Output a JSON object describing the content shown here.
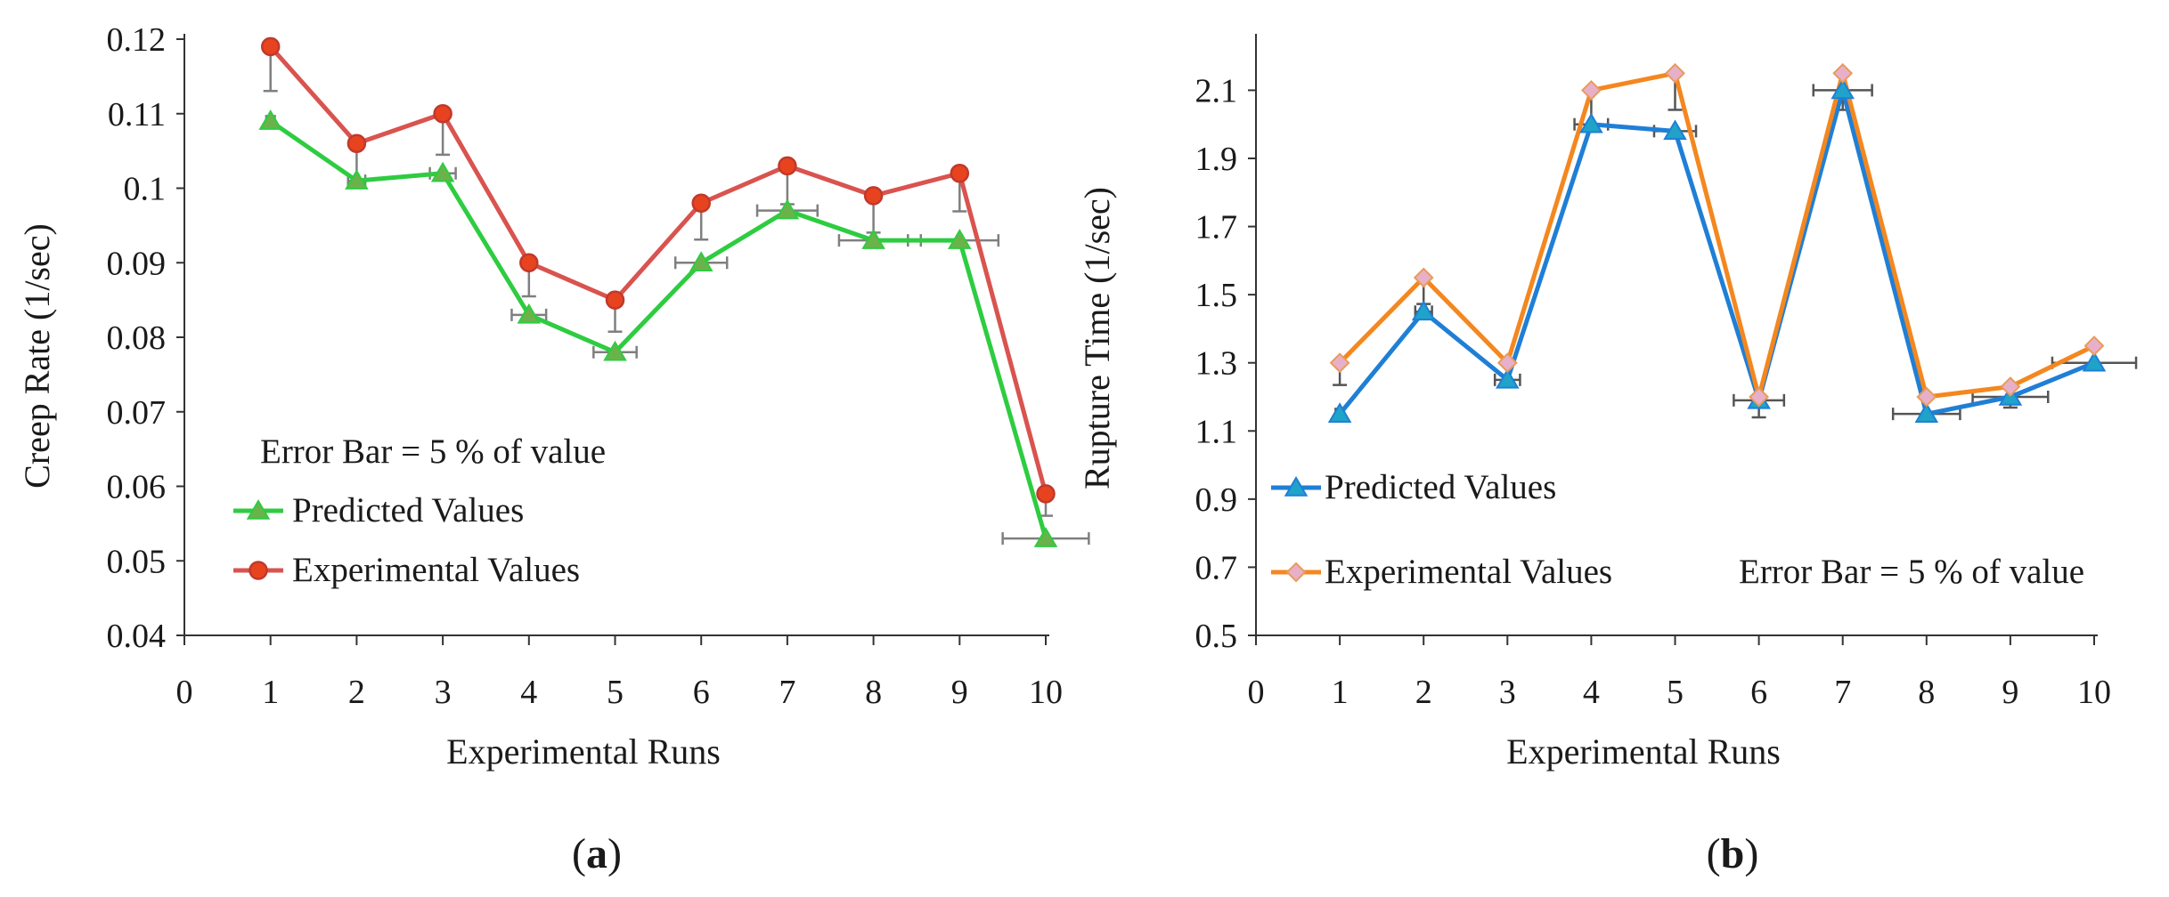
{
  "chart_data": [
    {
      "type": "line",
      "panel_label": "a",
      "title": "",
      "xlabel": "Experimental Runs",
      "ylabel": "Creep Rate (1/sec)",
      "xlim": [
        0,
        10
      ],
      "ylim": [
        0.04,
        0.12
      ],
      "x_ticks": [
        "0",
        "1",
        "2",
        "3",
        "4",
        "5",
        "6",
        "7",
        "8",
        "9",
        "10"
      ],
      "y_ticks": [
        "0.04",
        "0.05",
        "0.06",
        "0.07",
        "0.08",
        "0.09",
        "0.1",
        "0.11",
        "0.12"
      ],
      "x": [
        1,
        2,
        3,
        4,
        5,
        6,
        7,
        8,
        9,
        10
      ],
      "note": "Error Bar = 5 % of value",
      "legend_position": "lower-left",
      "series": [
        {
          "name": "Predicted Values",
          "color": "#2ecc40",
          "marker": "triangle",
          "marker_color": "#6ab34a",
          "values": [
            0.109,
            0.101,
            0.102,
            0.083,
            0.078,
            0.09,
            0.097,
            0.093,
            0.093,
            0.053
          ]
        },
        {
          "name": "Experimental Values",
          "color": "#d9534f",
          "marker": "circle",
          "marker_color": "#e8431f",
          "values": [
            0.119,
            0.106,
            0.11,
            0.09,
            0.085,
            0.098,
            0.103,
            0.099,
            0.102,
            0.059
          ]
        }
      ],
      "error_bars": {
        "fraction": 0.05,
        "color": "#7f7f7f"
      }
    },
    {
      "type": "line",
      "panel_label": "b",
      "title": "",
      "xlabel": "Experimental Runs",
      "ylabel": "Rupture Time (1/sec)",
      "xlim": [
        0,
        10
      ],
      "ylim": [
        0.5,
        2.25
      ],
      "x_ticks": [
        "0",
        "1",
        "2",
        "3",
        "4",
        "5",
        "6",
        "7",
        "8",
        "9",
        "10"
      ],
      "y_ticks": [
        "0.5",
        "0.7",
        "0.9",
        "1.1",
        "1.3",
        "1.5",
        "1.7",
        "1.9",
        "2.1"
      ],
      "x": [
        1,
        2,
        3,
        4,
        5,
        6,
        7,
        8,
        9,
        10
      ],
      "note": "Error Bar = 5 % of value",
      "legend_position": "lower-left",
      "series": [
        {
          "name": "Predicted Values",
          "color": "#1f7fd6",
          "marker": "triangle",
          "marker_color": "#1fa3c9",
          "values": [
            1.15,
            1.45,
            1.25,
            2.0,
            1.98,
            1.19,
            2.1,
            1.15,
            1.2,
            1.3
          ]
        },
        {
          "name": "Experimental Values",
          "color": "#f4871f",
          "marker": "diamond",
          "marker_color": "#e8b0c8",
          "values": [
            1.3,
            1.55,
            1.3,
            2.1,
            2.15,
            1.2,
            2.15,
            1.2,
            1.23,
            1.35
          ]
        }
      ],
      "error_bars": {
        "fraction": 0.05,
        "color": "#555555"
      }
    }
  ]
}
